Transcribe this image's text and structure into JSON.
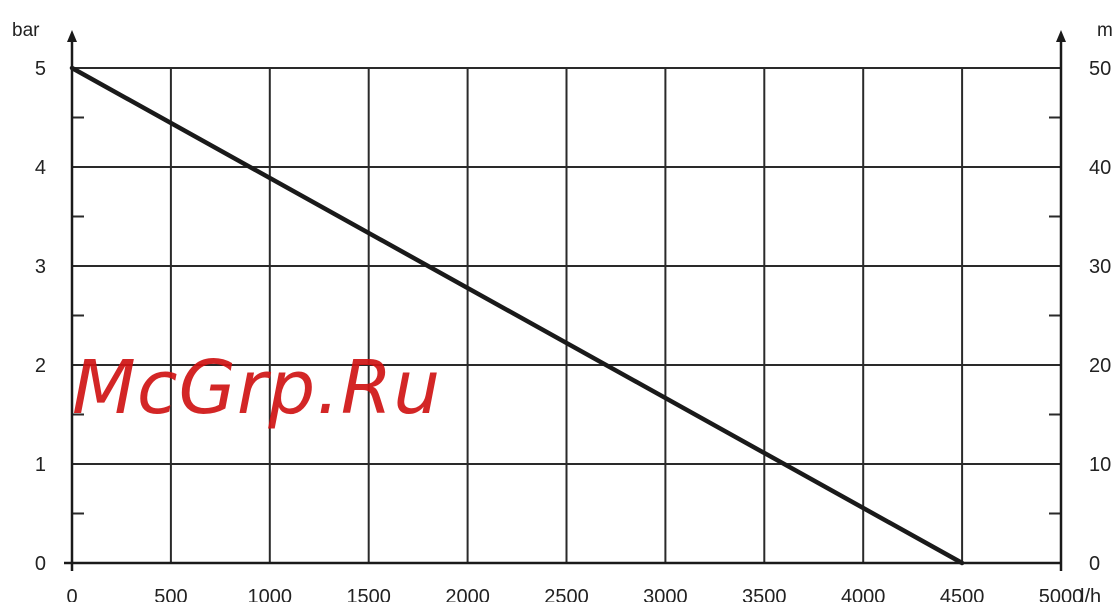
{
  "chart_data": {
    "type": "line",
    "x_unit": "l/h",
    "y_left_unit": "bar",
    "y_right_unit": "m",
    "xlim": [
      0,
      5000
    ],
    "ylim_left": [
      0,
      5
    ],
    "ylim_right": [
      0,
      50
    ],
    "x_ticks": [
      "0",
      "500",
      "1000",
      "1500",
      "2000",
      "2500",
      "3000",
      "3500",
      "4000",
      "4500",
      "5000"
    ],
    "y_left_ticks": [
      "0",
      "1",
      "2",
      "3",
      "4",
      "5"
    ],
    "y_right_ticks": [
      "0",
      "10",
      "20",
      "30",
      "40",
      "50"
    ],
    "grid": true,
    "series": [
      {
        "x": [
          0,
          4500
        ],
        "y": [
          5,
          0
        ]
      }
    ],
    "line_color": "#1a1a1a",
    "grid_color": "#2a2a2a"
  },
  "watermark": "McGrp.Ru"
}
